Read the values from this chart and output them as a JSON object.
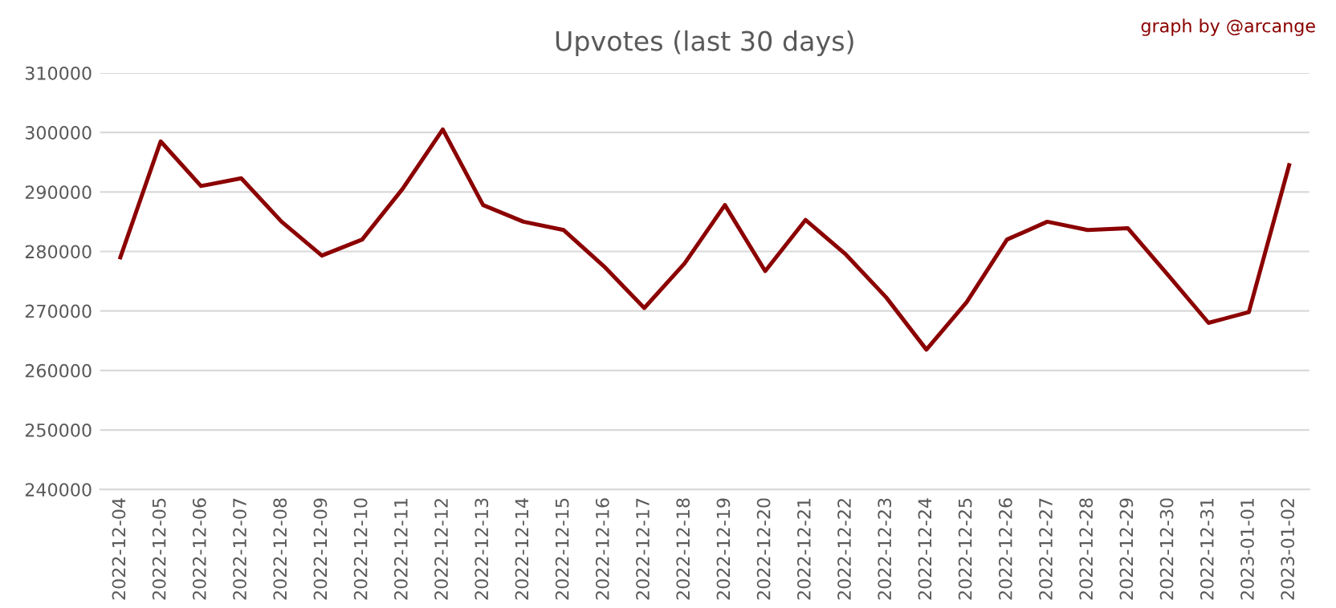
{
  "chart_data": {
    "type": "line",
    "title": "Upvotes (last 30 days)",
    "annotations": [
      "graph by @arcange"
    ],
    "categories": [
      "2022-12-04",
      "2022-12-05",
      "2022-12-06",
      "2022-12-07",
      "2022-12-08",
      "2022-12-09",
      "2022-12-10",
      "2022-12-11",
      "2022-12-12",
      "2022-12-13",
      "2022-12-14",
      "2022-12-15",
      "2022-12-16",
      "2022-12-17",
      "2022-12-18",
      "2022-12-19",
      "2022-12-20",
      "2022-12-21",
      "2022-12-22",
      "2022-12-23",
      "2022-12-24",
      "2022-12-25",
      "2022-12-26",
      "2022-12-27",
      "2022-12-28",
      "2022-12-29",
      "2022-12-30",
      "2022-12-31",
      "2023-01-01",
      "2023-01-02"
    ],
    "series": [
      {
        "color": "#8b0000",
        "values": [
          279000,
          298500,
          291000,
          292300,
          285000,
          279300,
          282000,
          290500,
          300500,
          287800,
          285000,
          283600,
          277500,
          270500,
          278000,
          287800,
          276700,
          285300,
          279500,
          272300,
          263500,
          271500,
          282000,
          285000,
          283600,
          283900,
          276000,
          268000,
          269800,
          294500
        ]
      }
    ],
    "ylim": [
      240000,
      310000
    ],
    "yticks": [
      240000,
      250000,
      260000,
      270000,
      280000,
      290000,
      300000,
      310000
    ],
    "grid": "y",
    "legend": false,
    "marker": "none",
    "line_style": "solid"
  }
}
